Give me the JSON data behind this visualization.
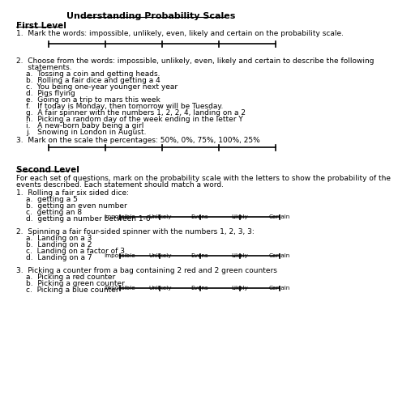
{
  "title": "Understanding Probability Scales",
  "first_level_title": "First Level",
  "second_level_title": "Second Level",
  "q1_text": "1.  Mark the words: impossible, unlikely, even, likely and certain on the probability scale.",
  "q2_header": "2.  Choose from the words: impossible, unlikely, even, likely and certain to describe the following",
  "q2_header2": "     statements.",
  "q2_items": [
    "a.  Tossing a coin and getting heads.",
    "b.  Rolling a fair dice and getting a 4",
    "c.  You being one-year younger next year",
    "d.  Pigs flying",
    "e.  Going on a trip to mars this week",
    "f.   If today is Monday, then tomorrow will be Tuesday.",
    "g.  A fair spinner with the numbers 1, 2, 2, 4, landing on a 2",
    "h.  Picking a random day of the week ending in the letter Y",
    "i.   A new-born baby being a girl",
    "j.   Snowing in London in August."
  ],
  "q3_text": "3.  Mark on the scale the percentages: 50%, 0%, 75%, 100%, 25%",
  "second_level_intro1": "For each set of questions, mark on the probability scale with the letters to show the probability of the",
  "second_level_intro2": "events described. Each statement should match a word.",
  "sl_q1_text": "1.  Rolling a fair six sided dice:",
  "sl_q1_items": [
    "a.  getting a 5",
    "b.  getting an even number",
    "c.  getting an 8",
    "d.  getting a number between 1-6"
  ],
  "sl_q2_text": "2.  Spinning a fair four-sided spinner with the numbers 1, 2, 3, 3:",
  "sl_q2_items": [
    "a.  Landing on a 3",
    "b.  Landing on a 2",
    "c.  Landing on a factor of 3",
    "d.  Landing on a 7"
  ],
  "sl_q3_text": "3.  Picking a counter from a bag containing 2 red and 2 green counters",
  "sl_q3_items": [
    "a.  Picking a red counter",
    "b.  Picking a green counter",
    "c.  Picking a blue counter"
  ],
  "scale_labels": [
    "Impossible",
    "Unlikely",
    "Evens",
    "Likely",
    "Certain"
  ],
  "bg_color": "#ffffff",
  "text_color": "#000000",
  "font_size": 7.5,
  "small_font_size": 6.5
}
